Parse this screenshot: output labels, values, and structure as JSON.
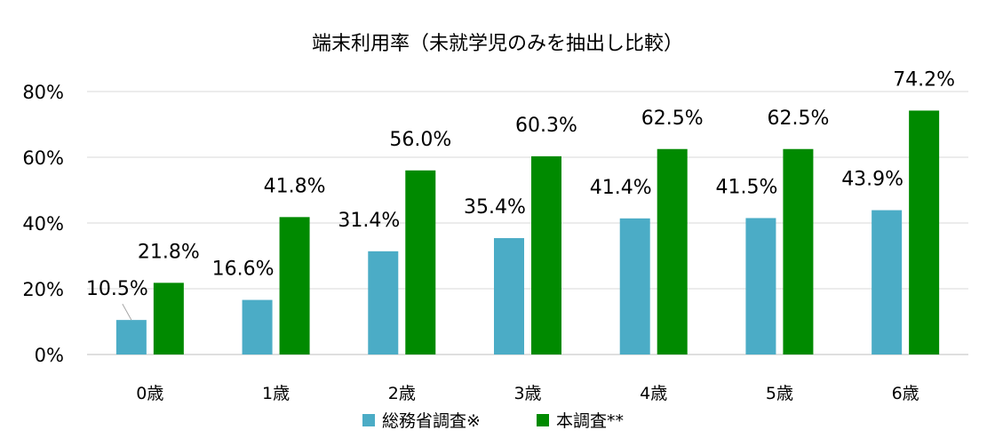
{
  "chart_data": {
    "type": "bar",
    "title": "端末利用率（未就学児のみを抽出し比較）",
    "categories": [
      "0歳",
      "1歳",
      "2歳",
      "3歳",
      "4歳",
      "5歳",
      "6歳"
    ],
    "series": [
      {
        "name": "総務省調査※",
        "color": "#4bacc6",
        "values": [
          10.5,
          16.6,
          31.4,
          35.4,
          41.4,
          41.5,
          43.9
        ],
        "labels": [
          "10.5%",
          "16.6%",
          "31.4%",
          "35.4%",
          "41.4%",
          "41.5%",
          "43.9%"
        ]
      },
      {
        "name": "本調査**",
        "color": "#008a00",
        "values": [
          21.8,
          41.8,
          56.0,
          60.3,
          62.5,
          62.5,
          74.2
        ],
        "labels": [
          "21.8%",
          "41.8%",
          "56.0%",
          "60.3%",
          "62.5%",
          "62.5%",
          "74.2%"
        ]
      }
    ],
    "ylim": [
      0,
      80
    ],
    "yticks": [
      0,
      20,
      40,
      60,
      80
    ],
    "ytick_labels": [
      "0%",
      "20%",
      "40%",
      "60%",
      "80%"
    ],
    "xlabel": "",
    "ylabel": "",
    "grid": true,
    "legend_position": "bottom"
  }
}
